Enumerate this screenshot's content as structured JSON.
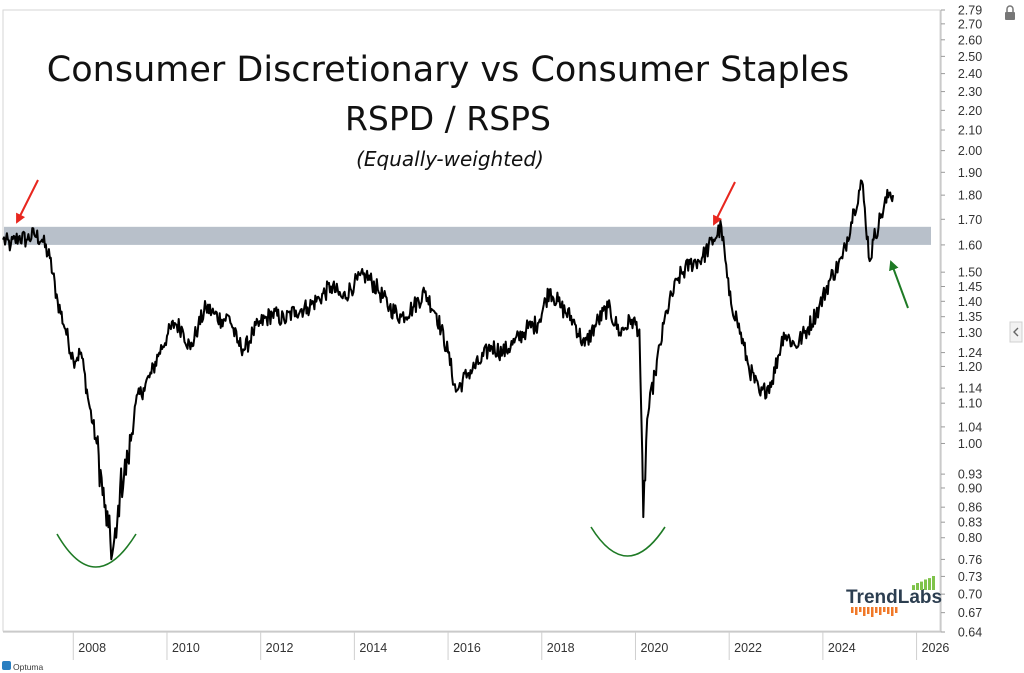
{
  "page": {
    "lock_icon": "lock-icon",
    "collapse_icon": "chevron-left-icon",
    "footer_brand": "Optuma"
  },
  "colors": {
    "line": "#000000",
    "band": "#b8c0ca",
    "red_arrow": "#e8261e",
    "green_arrow": "#1e7a25",
    "brand_text": "#2c3e50",
    "brand_green": "#7fc34a",
    "brand_orange": "#f07828"
  },
  "logo": {
    "text": "TrendLabs"
  },
  "chart_data": {
    "type": "line",
    "title": "Consumer Discretionary vs Consumer Staples",
    "subtitle": "RSPD / RSPS",
    "note": "(Equally-weighted)",
    "y_scale": "log",
    "ylim": [
      0.64,
      2.79
    ],
    "xlim": [
      "2006-07",
      "2026-07"
    ],
    "y_ticks": [
      0.64,
      0.67,
      0.7,
      0.73,
      0.76,
      0.8,
      0.83,
      0.86,
      0.9,
      0.93,
      1.0,
      1.04,
      1.1,
      1.14,
      1.2,
      1.24,
      1.3,
      1.35,
      1.4,
      1.45,
      1.5,
      1.6,
      1.7,
      1.8,
      1.9,
      2.0,
      2.1,
      2.2,
      2.3,
      2.4,
      2.5,
      2.6,
      2.7,
      2.79
    ],
    "y_tick_labels": [
      "0.64",
      "0.67",
      "0.70",
      "0.73",
      "0.76",
      "0.80",
      "0.83",
      "0.86",
      "0.90",
      "0.93",
      "1.00",
      "1.04",
      "1.10",
      "1.14",
      "1.20",
      "1.24",
      "1.30",
      "1.35",
      "1.40",
      "1.45",
      "1.50",
      "1.60",
      "1.70",
      "1.80",
      "1.90",
      "2.00",
      "2.10",
      "2.20",
      "2.30",
      "2.40",
      "2.50",
      "2.60",
      "2.70",
      "2.79"
    ],
    "x_ticks": [
      "2008",
      "2010",
      "2012",
      "2014",
      "2016",
      "2018",
      "2020",
      "2022",
      "2024",
      "2026"
    ],
    "grid": false,
    "resistance_band": [
      1.6,
      1.67
    ],
    "series": [
      {
        "x": [
          "2006-07",
          "2006-09",
          "2006-11",
          "2007-01",
          "2007-03",
          "2007-05",
          "2007-07",
          "2007-09",
          "2007-11",
          "2008-01",
          "2008-03",
          "2008-05",
          "2008-07",
          "2008-09",
          "2008-10",
          "2008-11",
          "2008-12",
          "2009-01",
          "2009-03",
          "2009-05",
          "2009-07",
          "2009-09",
          "2009-11",
          "2010-01",
          "2010-03",
          "2010-05",
          "2010-07",
          "2010-09",
          "2010-11",
          "2011-01",
          "2011-03",
          "2011-05",
          "2011-07",
          "2011-09",
          "2011-11",
          "2012-01",
          "2012-04",
          "2012-07",
          "2012-10",
          "2013-01",
          "2013-04",
          "2013-07",
          "2013-10",
          "2014-01",
          "2014-04",
          "2014-07",
          "2014-10",
          "2015-01",
          "2015-04",
          "2015-07",
          "2015-10",
          "2016-01",
          "2016-03",
          "2016-06",
          "2016-09",
          "2016-12",
          "2017-03",
          "2017-06",
          "2017-09",
          "2017-12",
          "2018-03",
          "2018-06",
          "2018-09",
          "2018-12",
          "2019-03",
          "2019-06",
          "2019-09",
          "2019-12",
          "2020-02",
          "2020-03",
          "2020-04",
          "2020-06",
          "2020-09",
          "2020-12",
          "2021-03",
          "2021-06",
          "2021-09",
          "2021-11",
          "2022-01",
          "2022-03",
          "2022-06",
          "2022-09",
          "2022-12",
          "2023-03",
          "2023-06",
          "2023-09",
          "2023-12",
          "2024-03",
          "2024-06",
          "2024-09",
          "2024-11",
          "2025-01",
          "2025-02",
          "2025-04",
          "2025-06",
          "2025-07"
        ],
        "values": [
          1.62,
          1.6,
          1.63,
          1.62,
          1.64,
          1.62,
          1.55,
          1.4,
          1.31,
          1.22,
          1.24,
          1.1,
          1.0,
          0.86,
          0.82,
          0.77,
          0.8,
          0.9,
          0.96,
          1.1,
          1.14,
          1.18,
          1.24,
          1.29,
          1.33,
          1.31,
          1.25,
          1.32,
          1.38,
          1.36,
          1.34,
          1.35,
          1.27,
          1.25,
          1.3,
          1.33,
          1.36,
          1.34,
          1.37,
          1.38,
          1.41,
          1.45,
          1.41,
          1.46,
          1.49,
          1.44,
          1.38,
          1.35,
          1.38,
          1.43,
          1.36,
          1.24,
          1.13,
          1.18,
          1.21,
          1.26,
          1.24,
          1.27,
          1.31,
          1.33,
          1.44,
          1.38,
          1.34,
          1.26,
          1.33,
          1.38,
          1.3,
          1.34,
          1.31,
          0.84,
          1.06,
          1.18,
          1.37,
          1.48,
          1.53,
          1.55,
          1.62,
          1.67,
          1.42,
          1.34,
          1.2,
          1.12,
          1.16,
          1.3,
          1.26,
          1.31,
          1.38,
          1.48,
          1.55,
          1.74,
          1.86,
          1.54,
          1.62,
          1.72,
          1.81,
          1.8
        ]
      }
    ]
  }
}
